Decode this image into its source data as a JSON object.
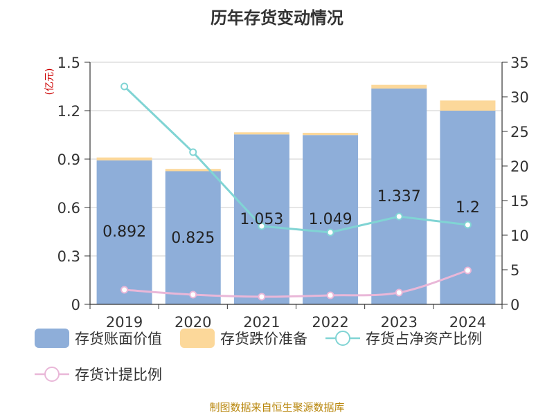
{
  "chart_data": {
    "type": "bar",
    "title": "历年存货变动情况",
    "categories": [
      "2019",
      "2020",
      "2021",
      "2022",
      "2023",
      "2024"
    ],
    "y_left": {
      "label": "(亿元)",
      "min": 0,
      "max": 1.5,
      "ticks": [
        0,
        0.3,
        0.6,
        0.9,
        1.2,
        1.5
      ],
      "tick_labels": [
        "0",
        "0.3",
        "0.6",
        "0.9",
        "1.2",
        "1.5"
      ]
    },
    "y_right": {
      "min": 0,
      "max": 35,
      "ticks": [
        0,
        5,
        10,
        15,
        20,
        25,
        30,
        35
      ],
      "tick_labels": [
        "0",
        "5",
        "10",
        "15",
        "20",
        "25",
        "30",
        "35"
      ]
    },
    "bar_series": [
      {
        "name": "存货账面价值",
        "color": "#8eaed9",
        "values": [
          0.892,
          0.825,
          1.053,
          1.049,
          1.337,
          1.2
        ],
        "labels": [
          "0.892",
          "0.825",
          "1.053",
          "1.049",
          "1.337",
          "1.2"
        ]
      },
      {
        "name": "存货跌价准备",
        "color": "#fcd89a",
        "values": [
          0.018,
          0.014,
          0.013,
          0.014,
          0.023,
          0.063
        ]
      }
    ],
    "line_series": [
      {
        "name": "存货占净资产比例",
        "color": "#80d4d4",
        "axis": "right",
        "values": [
          31.5,
          22.0,
          11.3,
          10.4,
          12.7,
          11.5
        ]
      },
      {
        "name": "存货计提比例",
        "color": "#e9b7d8",
        "axis": "right",
        "values": [
          2.1,
          1.4,
          1.1,
          1.3,
          1.7,
          4.9
        ]
      }
    ],
    "grid": true,
    "legend_position": "bottom"
  },
  "footer": {
    "source": "制图数据来自恒生聚源数据库"
  }
}
